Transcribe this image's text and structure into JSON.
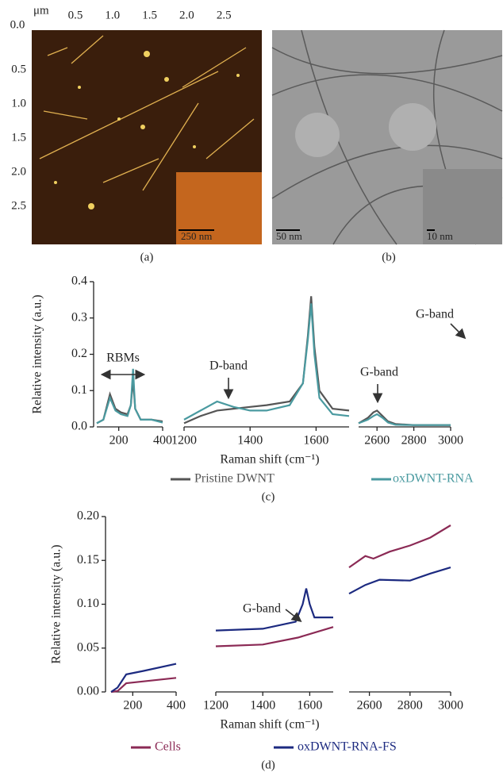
{
  "figure": {
    "panel_a": {
      "unit": "μm",
      "origin": "0.0",
      "top_ticks": [
        "0.5",
        "1.0",
        "1.5",
        "2.0",
        "2.5"
      ],
      "left_ticks": [
        "0.5",
        "1.0",
        "1.5",
        "2.0",
        "2.5"
      ],
      "scale_bar": "250 nm",
      "label": "(a)"
    },
    "panel_b": {
      "scale_bar": "50 nm",
      "inset_scale_bar": "10 nm",
      "label": "(b)"
    }
  },
  "chart_data": [
    {
      "type": "line",
      "label": "(c)",
      "y_label": "Relative intensity (a.u.)",
      "x_label": "Raman shift (cm⁻¹)",
      "ylim": [
        0,
        0.4
      ],
      "yticks": [
        {
          "value": 0,
          "label": "0.0"
        },
        0.1,
        0.2,
        0.3,
        0.4
      ],
      "panels": [
        {
          "xlim": [
            100,
            400
          ],
          "xticks": [
            200,
            400
          ]
        },
        {
          "xlim": [
            1200,
            1700
          ],
          "xticks": [
            1200,
            1400,
            1600
          ]
        },
        {
          "xlim": [
            2500,
            3000
          ],
          "xticks": [
            2600,
            2800,
            3000
          ]
        }
      ],
      "annotations": [
        "RBMs",
        "D-band",
        "G-band",
        "G-band"
      ],
      "series": [
        {
          "name": "Pristine DWNT",
          "color": "#555555",
          "x": [
            100,
            130,
            160,
            185,
            210,
            240,
            255,
            265,
            275,
            300,
            350,
            400,
            1200,
            1250,
            1300,
            1350,
            1400,
            1450,
            1520,
            1560,
            1575,
            1585,
            1595,
            1610,
            1650,
            1700,
            2500,
            2550,
            2580,
            2600,
            2630,
            2660,
            2700,
            2800,
            3000
          ],
          "values": [
            0.01,
            0.02,
            0.09,
            0.05,
            0.04,
            0.035,
            0.06,
            0.13,
            0.05,
            0.02,
            0.02,
            0.015,
            0.01,
            0.03,
            0.045,
            0.05,
            0.055,
            0.06,
            0.07,
            0.12,
            0.25,
            0.36,
            0.22,
            0.1,
            0.05,
            0.045,
            0.01,
            0.025,
            0.04,
            0.045,
            0.03,
            0.015,
            0.008,
            0.005,
            0.005
          ]
        },
        {
          "name": "oxDWNT-RNA",
          "color": "#4a9aa0",
          "x": [
            100,
            130,
            160,
            185,
            210,
            240,
            255,
            265,
            275,
            300,
            350,
            400,
            1200,
            1250,
            1300,
            1350,
            1400,
            1450,
            1520,
            1560,
            1575,
            1585,
            1595,
            1610,
            1650,
            1700,
            2500,
            2550,
            2580,
            2600,
            2630,
            2660,
            2700,
            2800,
            3000
          ],
          "values": [
            0.01,
            0.02,
            0.08,
            0.045,
            0.035,
            0.03,
            0.06,
            0.16,
            0.05,
            0.02,
            0.02,
            0.012,
            0.02,
            0.045,
            0.07,
            0.055,
            0.045,
            0.045,
            0.06,
            0.12,
            0.24,
            0.34,
            0.2,
            0.08,
            0.035,
            0.03,
            0.01,
            0.02,
            0.03,
            0.035,
            0.025,
            0.012,
            0.006,
            0.005,
            0.005
          ]
        }
      ]
    },
    {
      "type": "line",
      "label": "(d)",
      "y_label": "Relative intensity (a.u.)",
      "x_label": "Raman shift (cm⁻¹)",
      "ylim": [
        0,
        0.2
      ],
      "yticks": [
        {
          "value": 0,
          "label": "0.00"
        },
        {
          "value": 0.05,
          "label": "0.05"
        },
        {
          "value": 0.1,
          "label": "0.10"
        },
        {
          "value": 0.15,
          "label": "0.15"
        },
        {
          "value": 0.2,
          "label": "0.20"
        }
      ],
      "panels": [
        {
          "xlim": [
            100,
            400
          ],
          "xticks": [
            200,
            400
          ]
        },
        {
          "xlim": [
            1200,
            1700
          ],
          "xticks": [
            1200,
            1400,
            1600
          ]
        },
        {
          "xlim": [
            2500,
            3000
          ],
          "xticks": [
            2600,
            2800,
            3000
          ]
        }
      ],
      "annotations": [
        "G-band"
      ],
      "series": [
        {
          "name": "Cells",
          "color": "#8b2a55",
          "x": [
            100,
            130,
            170,
            250,
            400,
            1200,
            1400,
            1550,
            1700,
            2500,
            2580,
            2620,
            2700,
            2800,
            2900,
            3000
          ],
          "values": [
            0,
            0.001,
            0.01,
            0.012,
            0.016,
            0.052,
            0.054,
            0.062,
            0.074,
            0.142,
            0.155,
            0.152,
            0.16,
            0.167,
            0.176,
            0.19
          ]
        },
        {
          "name": "oxDWNT-RNA-FS",
          "color": "#1c2a80",
          "x": [
            100,
            130,
            170,
            250,
            400,
            1200,
            1400,
            1540,
            1570,
            1585,
            1600,
            1620,
            1700,
            2500,
            2580,
            2650,
            2800,
            2900,
            3000
          ],
          "values": [
            0,
            0.005,
            0.02,
            0.024,
            0.032,
            0.07,
            0.072,
            0.08,
            0.1,
            0.118,
            0.1,
            0.085,
            0.085,
            0.112,
            0.122,
            0.128,
            0.127,
            0.135,
            0.142
          ]
        }
      ]
    }
  ]
}
